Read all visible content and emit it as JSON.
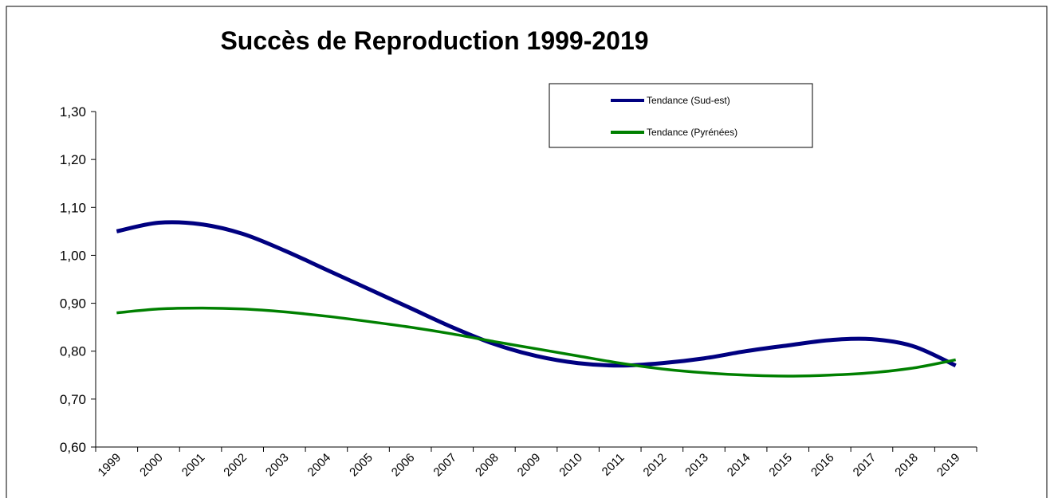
{
  "chart_data": {
    "type": "line",
    "title": "Succès de Reproduction 1999-2019",
    "categories": [
      "1999",
      "2000",
      "2001",
      "2002",
      "2003",
      "2004",
      "2005",
      "2006",
      "2007",
      "2008",
      "2009",
      "2010",
      "2011",
      "2012",
      "2013",
      "2014",
      "2015",
      "2016",
      "2017",
      "2018",
      "2019"
    ],
    "series": [
      {
        "name": "Tendance (Sud-est)",
        "color": "#000080",
        "values": [
          1.05,
          1.068,
          1.065,
          1.045,
          1.01,
          0.97,
          0.93,
          0.89,
          0.85,
          0.815,
          0.79,
          0.775,
          0.77,
          0.775,
          0.785,
          0.8,
          0.812,
          0.823,
          0.825,
          0.81,
          0.77
        ]
      },
      {
        "name": "Tendance (Pyrénées)",
        "color": "#008000",
        "values": [
          0.88,
          0.888,
          0.89,
          0.888,
          0.882,
          0.873,
          0.862,
          0.85,
          0.836,
          0.82,
          0.805,
          0.79,
          0.775,
          0.763,
          0.755,
          0.75,
          0.748,
          0.75,
          0.755,
          0.765,
          0.782
        ]
      }
    ],
    "ylim": [
      0.6,
      1.3
    ],
    "yticks": [
      {
        "value": 0.6,
        "label": "0,60"
      },
      {
        "value": 0.7,
        "label": "0,70"
      },
      {
        "value": 0.8,
        "label": "0,80"
      },
      {
        "value": 0.9,
        "label": "0,90"
      },
      {
        "value": 1.0,
        "label": "1,00"
      },
      {
        "value": 1.1,
        "label": "1,10"
      },
      {
        "value": 1.2,
        "label": "1,20"
      },
      {
        "value": 1.3,
        "label": "1,30"
      }
    ],
    "grid": false,
    "legend": "top-right"
  }
}
